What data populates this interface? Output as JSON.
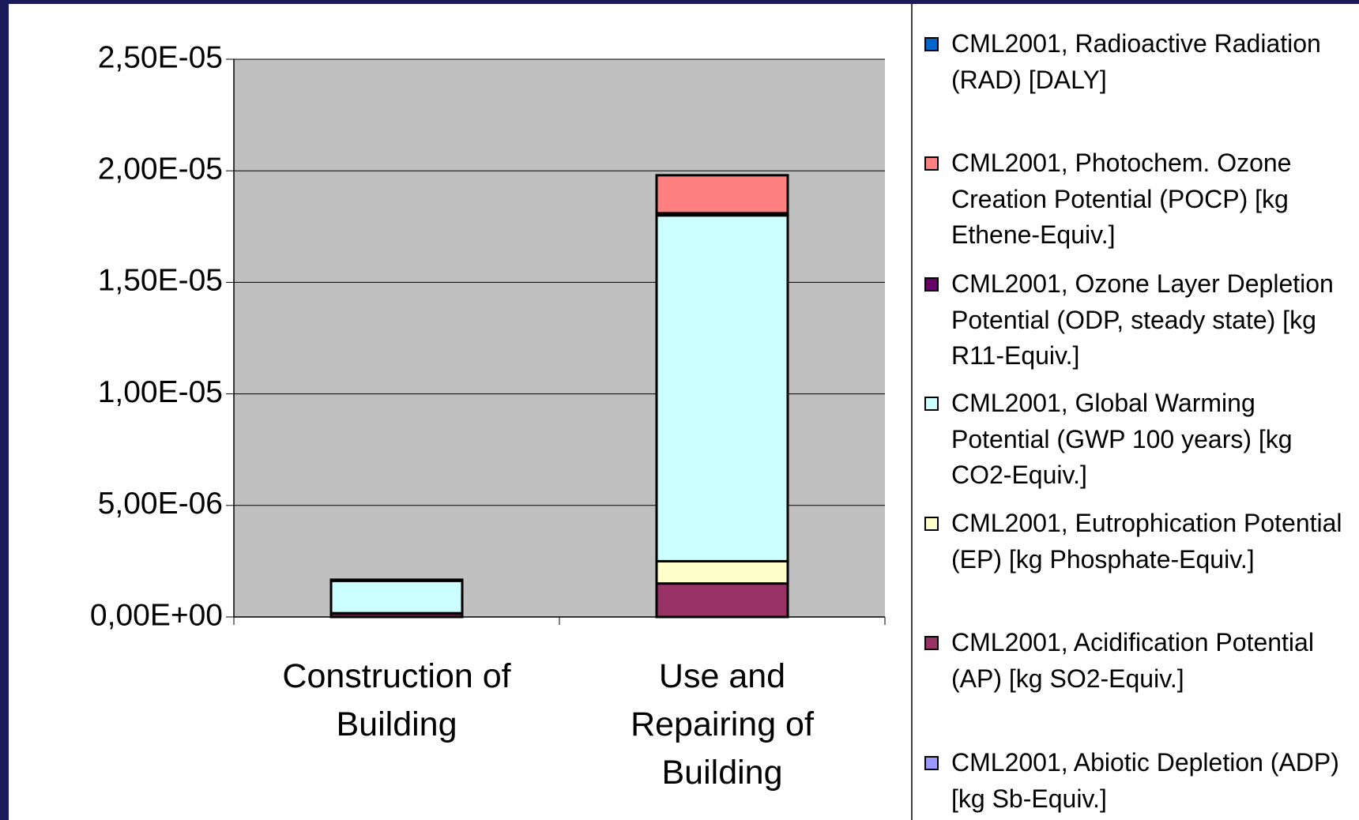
{
  "chart_data": {
    "type": "bar",
    "stacked": true,
    "categories": [
      "Construction of Building",
      "Use and Repairing of Building"
    ],
    "series": [
      {
        "name": "CML2001, Abiotic Depletion (ADP) [kg Sb-Equiv.]",
        "color": "#9999ff",
        "values": [
          0,
          0
        ]
      },
      {
        "name": "CML2001, Acidification Potential (AP) [kg SO2-Equiv.]",
        "color": "#993366",
        "values": [
          1.5e-07,
          1.5e-06
        ]
      },
      {
        "name": "CML2001, Eutrophication Potential (EP) [kg Phosphate-Equiv.]",
        "color": "#ffffcc",
        "values": [
          2e-08,
          1e-06
        ]
      },
      {
        "name": "CML2001, Global Warming Potential (GWP 100 years) [kg CO2-Equiv.]",
        "color": "#ccffff",
        "values": [
          1.45e-06,
          1.55e-05
        ]
      },
      {
        "name": "CML2001, Ozone Layer Depletion Potential (ODP, steady state) [kg R11-Equiv.]",
        "color": "#660066",
        "values": [
          5e-08,
          1e-07
        ]
      },
      {
        "name": "CML2001, Photochem. Ozone Creation Potential (POCP) [kg Ethene-Equiv.]",
        "color": "#ff8080",
        "values": [
          0,
          1.7e-06
        ]
      },
      {
        "name": "CML2001, Radioactive Radiation (RAD) [DALY]",
        "color": "#0066cc",
        "values": [
          0,
          0
        ]
      }
    ],
    "ylim": [
      0,
      2.5e-05
    ],
    "yticks": [
      {
        "value": 0,
        "label": "0,00E+00"
      },
      {
        "value": 5e-06,
        "label": "5,00E-06"
      },
      {
        "value": 1e-05,
        "label": "1,00E-05"
      },
      {
        "value": 1.5e-05,
        "label": "1,50E-05"
      },
      {
        "value": 2e-05,
        "label": "2,00E-05"
      },
      {
        "value": 2.5e-05,
        "label": "2,50E-05"
      }
    ],
    "grid": true,
    "legend": "right",
    "plot_background": "#c0c0c0"
  }
}
